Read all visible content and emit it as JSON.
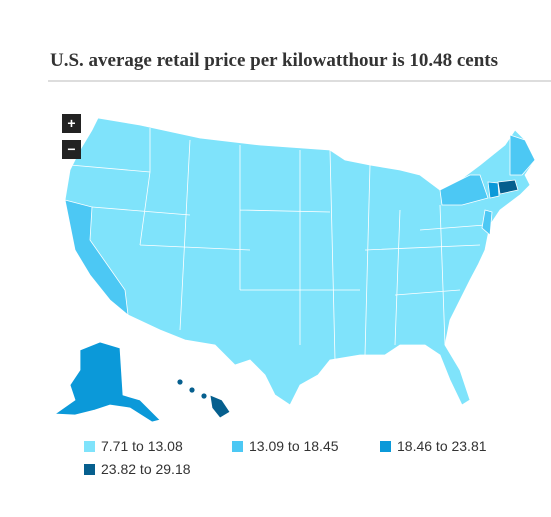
{
  "title": "U.S. average retail price per kilowatthour is 10.48 cents",
  "zoom": {
    "in": "+",
    "out": "−"
  },
  "legend": [
    {
      "label": "7.71 to 13.08",
      "color": "#7fe3fb"
    },
    {
      "label": "13.09 to 18.45",
      "color": "#4cc8f4"
    },
    {
      "label": "18.46 to 23.81",
      "color": "#0b99d9"
    },
    {
      "label": "23.82 to 29.18",
      "color": "#065f8e"
    }
  ]
}
